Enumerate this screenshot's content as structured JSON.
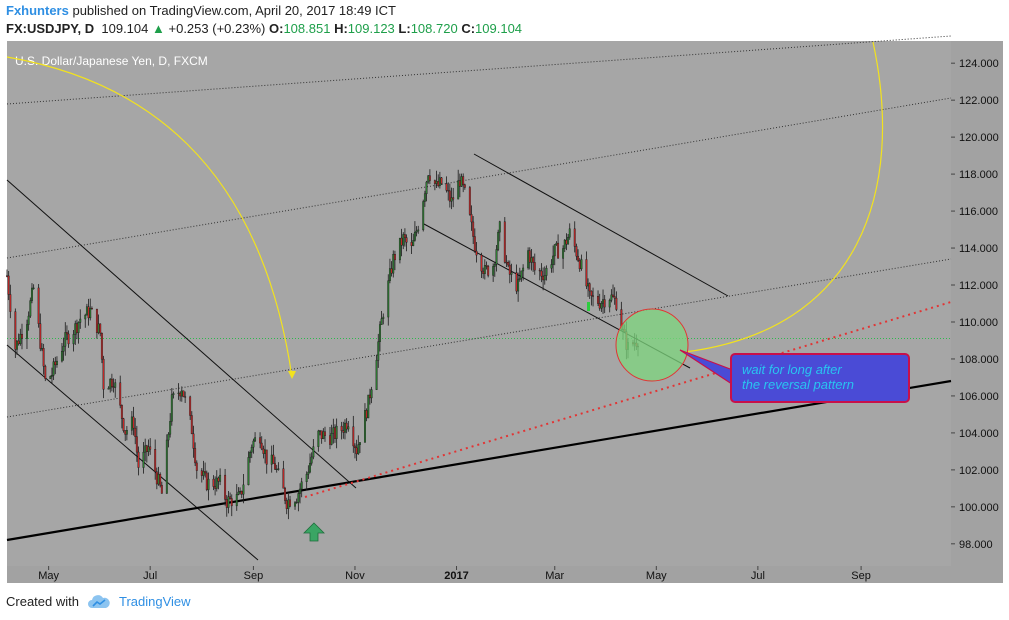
{
  "header": {
    "publisher": "Fxhunters",
    "published_text": "published on TradingView.com, April 20, 2017 18:49 ICT",
    "symbol": "FX:USDJPY, D",
    "last": "109.104",
    "change": "+0.253 (+0.23%)",
    "open_label": "O:",
    "open": "108.851",
    "high_label": "H:",
    "high": "109.123",
    "low_label": "L:",
    "low": "108.720",
    "close_label": "C:",
    "close": "109.104"
  },
  "footer": {
    "created_with": "Created with",
    "brand": "TradingView"
  },
  "colors": {
    "plot_bg": "#a6a6a6",
    "axis_bg": "#a2a2a2",
    "up_candle": "#2e7d32",
    "down_candle": "#c62828",
    "brand": "#2f8fe3",
    "price_line": "#1e9f4a"
  },
  "chart_data": {
    "type": "candlestick",
    "title": "U.S. Dollar/Japanese Yen, D, FXCM",
    "x_ticks": [
      "May",
      "Jul",
      "Sep",
      "Nov",
      "2017",
      "Mar",
      "May",
      "Jul",
      "Sep"
    ],
    "y_ticks": [
      "124.000",
      "122.000",
      "120.000",
      "118.000",
      "116.000",
      "114.000",
      "112.000",
      "110.000",
      "108.000",
      "106.000",
      "104.000",
      "102.000",
      "100.000",
      "98.000"
    ],
    "ylim": [
      96.8,
      125.2
    ],
    "x_range": [
      "2016-04-06",
      "2017-10-25"
    ],
    "current_price": "109.104",
    "close_path": [
      [
        "2016-04-06",
        112.5
      ],
      [
        "2016-04-11",
        108.6
      ],
      [
        "2016-04-18",
        110.2
      ],
      [
        "2016-04-22",
        111.8
      ],
      [
        "2016-04-29",
        106.8
      ],
      [
        "2016-05-03",
        107.2
      ],
      [
        "2016-05-10",
        108.9
      ],
      [
        "2016-05-17",
        109.7
      ],
      [
        "2016-05-20",
        110.2
      ],
      [
        "2016-05-26",
        110.6
      ],
      [
        "2016-06-01",
        109.4
      ],
      [
        "2016-06-03",
        106.6
      ],
      [
        "2016-06-09",
        106.9
      ],
      [
        "2016-06-16",
        104.1
      ],
      [
        "2016-06-21",
        104.6
      ],
      [
        "2016-06-24",
        102.2
      ],
      [
        "2016-06-30",
        103.2
      ],
      [
        "2016-07-08",
        100.7
      ],
      [
        "2016-07-14",
        105.7
      ],
      [
        "2016-07-20",
        106.5
      ],
      [
        "2016-07-26",
        104.2
      ],
      [
        "2016-07-29",
        102.1
      ],
      [
        "2016-08-04",
        101.3
      ],
      [
        "2016-08-12",
        101.3
      ],
      [
        "2016-08-16",
        100.3
      ],
      [
        "2016-08-24",
        100.5
      ],
      [
        "2016-08-31",
        103.4
      ],
      [
        "2016-09-05",
        103.9
      ],
      [
        "2016-09-09",
        102.6
      ],
      [
        "2016-09-14",
        102.2
      ],
      [
        "2016-09-21",
        100.3
      ],
      [
        "2016-09-27",
        100.6
      ],
      [
        "2016-10-03",
        101.8
      ],
      [
        "2016-10-10",
        103.9
      ],
      [
        "2016-10-18",
        103.8
      ],
      [
        "2016-10-24",
        104.2
      ],
      [
        "2016-10-28",
        104.7
      ],
      [
        "2016-11-02",
        103.1
      ],
      [
        "2016-11-09",
        105.6
      ],
      [
        "2016-11-14",
        108.3
      ],
      [
        "2016-11-18",
        110.6
      ],
      [
        "2016-11-24",
        113.4
      ],
      [
        "2016-11-30",
        114.5
      ],
      [
        "2016-12-05",
        113.9
      ],
      [
        "2016-12-09",
        115.3
      ],
      [
        "2016-12-15",
        118.2
      ],
      [
        "2016-12-20",
        117.3
      ],
      [
        "2016-12-23",
        117.5
      ],
      [
        "2016-12-29",
        116.5
      ],
      [
        "2017-01-03",
        117.7
      ],
      [
        "2017-01-06",
        116.9
      ],
      [
        "2017-01-12",
        114.2
      ],
      [
        "2017-01-18",
        112.7
      ],
      [
        "2017-01-23",
        113.1
      ],
      [
        "2017-01-27",
        115.0
      ],
      [
        "2017-02-01",
        112.7
      ],
      [
        "2017-02-07",
        111.9
      ],
      [
        "2017-02-13",
        113.8
      ],
      [
        "2017-02-17",
        112.8
      ],
      [
        "2017-02-23",
        112.6
      ],
      [
        "2017-03-01",
        113.8
      ],
      [
        "2017-03-06",
        114.0
      ],
      [
        "2017-03-10",
        114.8
      ],
      [
        "2017-03-16",
        113.3
      ],
      [
        "2017-03-22",
        111.3
      ],
      [
        "2017-03-28",
        111.1
      ],
      [
        "2017-04-03",
        111.4
      ],
      [
        "2017-04-07",
        111.1
      ],
      [
        "2017-04-11",
        109.4
      ],
      [
        "2017-04-14",
        108.6
      ],
      [
        "2017-04-20",
        109.1
      ]
    ],
    "annotation": {
      "text": "wait for long after the reversal pattern"
    }
  }
}
